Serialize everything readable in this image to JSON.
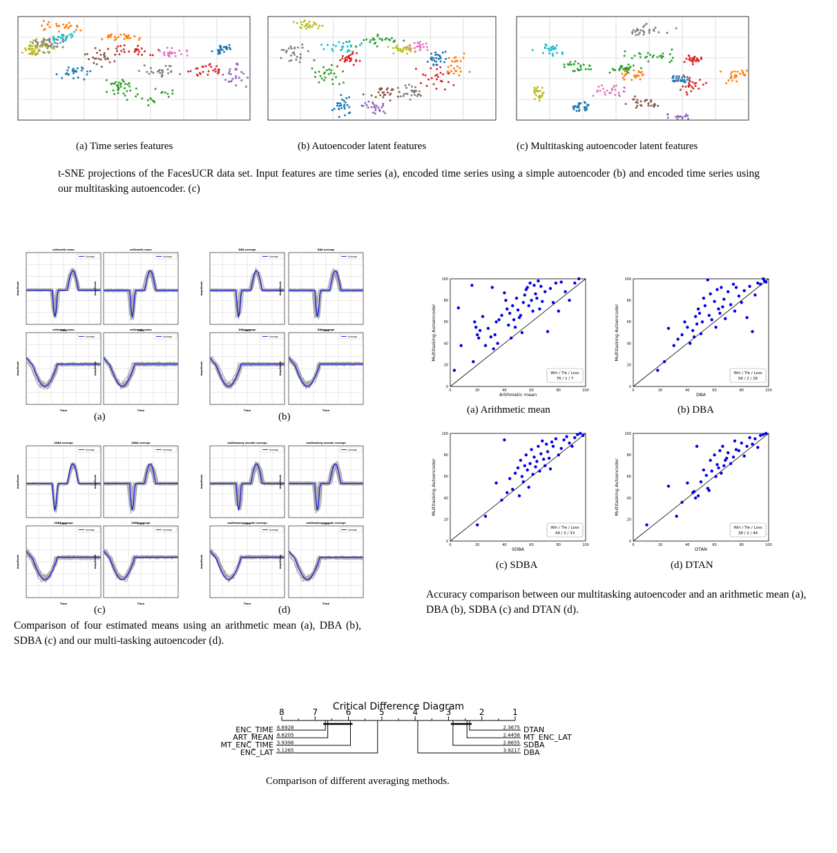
{
  "tsne": {
    "panels": [
      {
        "caption": "(a) Time series features"
      },
      {
        "caption": "(b) Autoencoder latent features"
      },
      {
        "caption": "(c) Multitasking autoencoder latent features"
      }
    ],
    "class_colors": [
      "#1f77b4",
      "#ff7f0e",
      "#2ca02c",
      "#d62728",
      "#9467bd",
      "#8c564b",
      "#e377c2",
      "#7f7f7f",
      "#bcbd22",
      "#17becf"
    ],
    "figure_caption": "t-SNE projections of the FacesUCR data set. Input features are time series (a), encoded time series using a simple autoencoder (b) and encoded time series using our multitasking autoencoder. (c)"
  },
  "means": {
    "groups": [
      {
        "label": "(a)",
        "method": "arithmetic mean"
      },
      {
        "label": "(b)",
        "method": "DBA average"
      },
      {
        "label": "(c)",
        "method": "SDBA average"
      },
      {
        "label": "(d)",
        "method": "multitasking encoder average"
      }
    ],
    "legend": "Average",
    "xlabel": "Time",
    "ylabel": "Amplitude",
    "figure_caption": "Comparison of four estimated means using an arithmetic mean (a), DBA (b), SDBA (c) and our multi-tasking autoencoder (d)."
  },
  "accuracy": {
    "ylabel": "Multitasking Autoencoder",
    "plots": [
      {
        "caption": "(a) Arithmetic mean",
        "xlabel": "Arithmetic mean",
        "wtl_title": "Win / Tie / Loss",
        "wtl": "76 / 1 / 7"
      },
      {
        "caption": "(b) DBA",
        "xlabel": "DBA",
        "wtl_title": "Win / Tie / Loss",
        "wtl": "56 / 2 / 26"
      },
      {
        "caption": "(c) SDBA",
        "xlabel": "SDBA",
        "wtl_title": "Win / Tie / Loss",
        "wtl": "49 / 2 / 33"
      },
      {
        "caption": "(d) DTAN",
        "xlabel": "DTAN",
        "wtl_title": "Win / Tie / Loss",
        "wtl": "38 / 2 / 44"
      }
    ],
    "figure_caption": "Accuracy comparison between our multitasking autoencoder and an arithmetic mean (a), DBA (b), SDBA (c) and DTAN (d)."
  },
  "chart_data": [
    {
      "type": "scatter",
      "title": "",
      "xlabel": "Arithmetic mean",
      "ylabel": "Multitasking Autoencoder",
      "xlim": [
        0,
        100
      ],
      "ylim": [
        0,
        100
      ],
      "x": [
        3,
        6,
        8,
        16,
        17,
        18,
        19,
        20,
        21,
        22,
        24,
        26,
        28,
        30,
        31,
        32,
        33,
        34,
        35,
        36,
        38,
        40,
        41,
        42,
        43,
        44,
        45,
        46,
        47,
        48,
        49,
        50,
        51,
        52,
        53,
        54,
        55,
        56,
        57,
        58,
        59,
        60,
        61,
        62,
        63,
        64,
        65,
        66,
        67,
        68,
        70,
        72,
        74,
        76,
        78,
        80,
        82,
        85,
        88,
        92,
        95
      ],
      "y": [
        15,
        73,
        38,
        94,
        23,
        60,
        55,
        48,
        45,
        52,
        65,
        38,
        54,
        46,
        92,
        35,
        48,
        60,
        40,
        62,
        66,
        87,
        80,
        72,
        57,
        68,
        45,
        75,
        62,
        55,
        82,
        71,
        64,
        66,
        50,
        78,
        85,
        90,
        92,
        75,
        96,
        80,
        70,
        94,
        86,
        82,
        98,
        72,
        93,
        79,
        88,
        51,
        91,
        78,
        96,
        70,
        97,
        88,
        80,
        96,
        100
      ],
      "annotation": "Win / Tie / Loss 76 / 1 / 7"
    },
    {
      "type": "scatter",
      "title": "",
      "xlabel": "DBA",
      "ylabel": "Multitasking Autoencoder",
      "xlim": [
        0,
        100
      ],
      "ylim": [
        0,
        100
      ],
      "x": [
        18,
        23,
        26,
        30,
        33,
        36,
        38,
        40,
        42,
        44,
        45,
        46,
        47,
        48,
        49,
        50,
        51,
        52,
        53,
        55,
        56,
        57,
        58,
        60,
        61,
        62,
        63,
        64,
        65,
        66,
        67,
        68,
        70,
        72,
        74,
        75,
        76,
        78,
        80,
        82,
        84,
        86,
        88,
        90,
        92,
        94,
        96,
        97,
        98
      ],
      "y": [
        15,
        23,
        54,
        38,
        44,
        48,
        60,
        55,
        40,
        52,
        46,
        65,
        58,
        72,
        68,
        49,
        60,
        82,
        75,
        99,
        66,
        86,
        62,
        79,
        55,
        90,
        72,
        68,
        92,
        74,
        81,
        63,
        88,
        76,
        95,
        70,
        92,
        84,
        78,
        89,
        64,
        93,
        51,
        85,
        96,
        95,
        100,
        98,
        97
      ],
      "annotation": "Win / Tie / Loss 56 / 2 / 26"
    },
    {
      "type": "scatter",
      "title": "",
      "xlabel": "SDBA",
      "ylabel": "Multitasking Autoencoder",
      "xlim": [
        0,
        100
      ],
      "ylim": [
        0,
        100
      ],
      "x": [
        20,
        26,
        34,
        38,
        40,
        42,
        44,
        46,
        48,
        50,
        51,
        52,
        53,
        54,
        55,
        56,
        57,
        58,
        59,
        60,
        61,
        62,
        63,
        64,
        65,
        66,
        67,
        68,
        69,
        70,
        71,
        72,
        73,
        74,
        75,
        76,
        78,
        80,
        82,
        84,
        86,
        88,
        90,
        92,
        94,
        96,
        98
      ],
      "y": [
        15,
        23,
        54,
        38,
        94,
        45,
        58,
        48,
        63,
        68,
        42,
        75,
        60,
        55,
        70,
        80,
        66,
        50,
        72,
        85,
        62,
        78,
        69,
        74,
        88,
        65,
        81,
        93,
        76,
        70,
        90,
        83,
        77,
        67,
        92,
        88,
        95,
        80,
        86,
        94,
        97,
        91,
        88,
        96,
        99,
        100,
        98
      ],
      "annotation": "Win / Tie / Loss 49 / 2 / 33"
    },
    {
      "type": "scatter",
      "title": "",
      "xlabel": "DTAN",
      "ylabel": "Multitasking Autoencoder",
      "xlim": [
        0,
        100
      ],
      "ylim": [
        0,
        100
      ],
      "x": [
        10,
        26,
        32,
        36,
        40,
        44,
        45,
        46,
        47,
        48,
        50,
        52,
        54,
        55,
        56,
        57,
        58,
        60,
        61,
        62,
        63,
        64,
        65,
        66,
        67,
        68,
        69,
        70,
        72,
        74,
        75,
        76,
        78,
        80,
        82,
        84,
        86,
        88,
        90,
        92,
        94,
        96,
        98
      ],
      "y": [
        15,
        51,
        23,
        36,
        54,
        45,
        46,
        40,
        88,
        42,
        55,
        66,
        61,
        49,
        47,
        75,
        65,
        80,
        60,
        71,
        68,
        84,
        63,
        88,
        70,
        75,
        77,
        82,
        72,
        78,
        93,
        85,
        84,
        91,
        79,
        88,
        96,
        90,
        95,
        87,
        98,
        99,
        100
      ],
      "annotation": "Win / Tie / Loss 38 / 2 / 44"
    },
    {
      "type": "table",
      "title": "Critical Difference Diagram",
      "axis_ticks": [
        "8",
        "7",
        "6",
        "5",
        "4",
        "3",
        "2",
        "1"
      ],
      "ranks": [
        {
          "method": "ENC_TIME",
          "rank": "6.6928"
        },
        {
          "method": "ART_MEAN",
          "rank": "6.6205"
        },
        {
          "method": "MT_ENC_TIME",
          "rank": "5.9398"
        },
        {
          "method": "ENC_LAT",
          "rank": "5.1265"
        },
        {
          "method": "DTAN",
          "rank": "2.3675"
        },
        {
          "method": "MT_ENC_LAT",
          "rank": "2.4458"
        },
        {
          "method": "SDBA",
          "rank": "2.8655"
        },
        {
          "method": "DBA",
          "rank": "3.9217"
        }
      ]
    }
  ],
  "cd": {
    "title": "Critical Difference Diagram",
    "ticks": [
      "8",
      "7",
      "6",
      "5",
      "4",
      "3",
      "2",
      "1"
    ],
    "figure_caption": "Comparison of different averaging methods."
  }
}
